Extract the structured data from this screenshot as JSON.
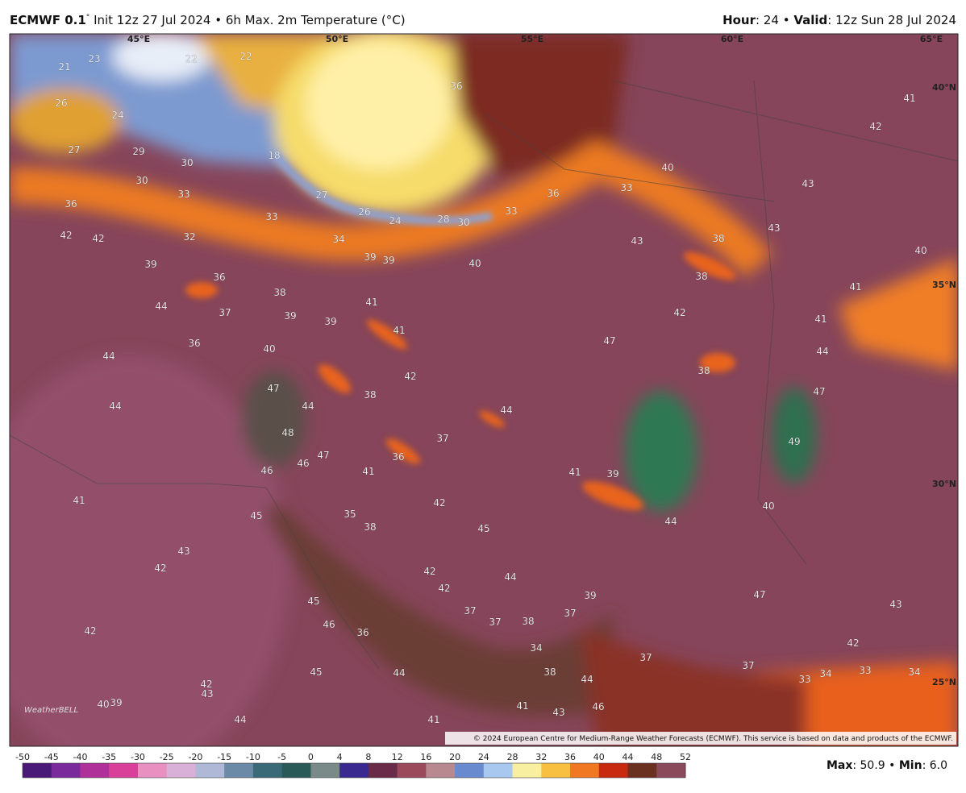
{
  "header": {
    "model": "ECMWF 0.1",
    "degree": "°",
    "title": "Init 12z 27 Jul 2024 • 6h Max. 2m Temperature (°C)",
    "hour_label": "Hour",
    "hour_text": ": 24 • ",
    "valid_label": "Valid",
    "valid_text": ": 12z Sun 28 Jul 2024"
  },
  "map": {
    "longitudes": [
      "45°E",
      "50°E",
      "55°E",
      "60°E",
      "65°E"
    ],
    "latitudes": [
      "40°N",
      "35°N",
      "30°N",
      "25°N"
    ],
    "labels": [
      21,
      23,
      22,
      22,
      26,
      24,
      27,
      29,
      18,
      30,
      30,
      33,
      36,
      27,
      26,
      24,
      28,
      30,
      33,
      36,
      33,
      40,
      43,
      42,
      41,
      36,
      33,
      42,
      42,
      32,
      34,
      39,
      39,
      40,
      43,
      38,
      43,
      40,
      39,
      36,
      38,
      41,
      38,
      44,
      37,
      39,
      41,
      39,
      41,
      42,
      41,
      36,
      40,
      47,
      44,
      44,
      42,
      38,
      47,
      38,
      47,
      44,
      44,
      44,
      48,
      37,
      49,
      47,
      36,
      46,
      41,
      41,
      39,
      46,
      41,
      42,
      40,
      45,
      35,
      38,
      44,
      45,
      43,
      42,
      42,
      44,
      42,
      39,
      47,
      45,
      43,
      37,
      37,
      37,
      38,
      46,
      42,
      36,
      42,
      34,
      37,
      37,
      45,
      44,
      38,
      44,
      33,
      34,
      34,
      33,
      42,
      43,
      40,
      39,
      46,
      43,
      41,
      44,
      41
    ],
    "copyright": "© 2024 European Centre for Medium-Range Weather Forecasts (ECMWF). This service is based on data and products of the ECMWF.",
    "logo": "WeatherBELL"
  },
  "colorbar": {
    "ticks": [
      -50,
      -45,
      -40,
      -35,
      -30,
      -25,
      -20,
      -15,
      -10,
      -5,
      0,
      4,
      8,
      12,
      16,
      20,
      24,
      28,
      32,
      36,
      40,
      44,
      48,
      52
    ],
    "colors": [
      "#4a1a78",
      "#7a2a9a",
      "#b0309a",
      "#d8409a",
      "#e890c0",
      "#d8b0d8",
      "#b0b8d8",
      "#6a8aa8",
      "#3a6a78",
      "#2a5a58",
      "#7a8a88",
      "#3a2a90",
      "#6a2a4a",
      "#9a4a5a",
      "#b88a90",
      "#6a8ad0",
      "#a8c8f0",
      "#f8f0a0",
      "#f8c040",
      "#f07820",
      "#c82a10",
      "#6a3020",
      "#8a4a5a",
      "#2a7a50"
    ],
    "max_label": "Max",
    "max_text": ": 50.9 • ",
    "min_label": "Min",
    "min_text": ": 6.0"
  }
}
